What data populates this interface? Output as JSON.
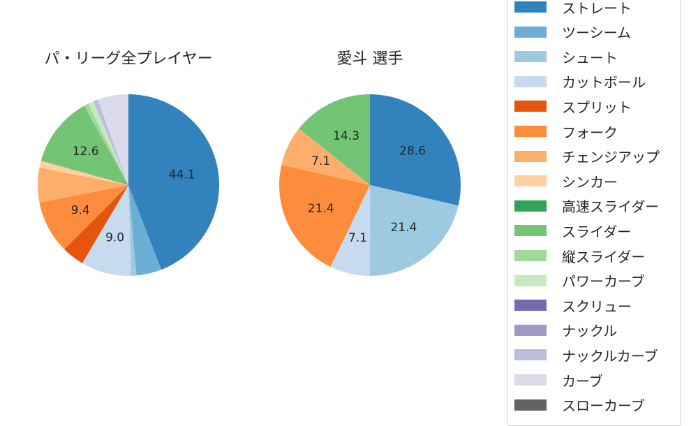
{
  "chart_data": [
    {
      "type": "pie",
      "title": "パ・リーグ全プレイヤー",
      "categories": [
        "ストレート",
        "ツーシーム",
        "シュート",
        "カットボール",
        "スプリット",
        "フォーク",
        "チェンジアップ",
        "シンカー",
        "高速スライダー",
        "スライダー",
        "縦スライダー",
        "パワーカーブ",
        "スクリュー",
        "ナックル",
        "ナックルカーブ",
        "カーブ",
        "スローカーブ"
      ],
      "values": [
        44.1,
        4.5,
        0.9,
        9.0,
        4.0,
        9.4,
        6.2,
        1.2,
        0.0,
        12.6,
        0.8,
        1.0,
        0.0,
        0.0,
        0.8,
        5.5,
        0.0
      ],
      "labels": [
        "44.1",
        "",
        "",
        "9.0",
        "",
        "9.4",
        "",
        "",
        "",
        "12.6",
        "",
        "",
        "",
        "",
        "",
        "",
        ""
      ]
    },
    {
      "type": "pie",
      "title": "愛斗  選手",
      "categories": [
        "ストレート",
        "ツーシーム",
        "シュート",
        "カットボール",
        "スプリット",
        "フォーク",
        "チェンジアップ",
        "シンカー",
        "高速スライダー",
        "スライダー",
        "縦スライダー",
        "パワーカーブ",
        "スクリュー",
        "ナックル",
        "ナックルカーブ",
        "カーブ",
        "スローカーブ"
      ],
      "values": [
        28.6,
        0,
        21.4,
        7.1,
        0,
        21.4,
        7.1,
        0,
        0,
        14.3,
        0,
        0,
        0,
        0,
        0,
        0,
        0
      ],
      "labels": [
        "28.6",
        "",
        "21.4",
        "7.1",
        "",
        "21.4",
        "7.1",
        "",
        "",
        "14.3",
        "",
        "",
        "",
        "",
        "",
        "",
        ""
      ]
    }
  ],
  "legend": {
    "entries": [
      "ストレート",
      "ツーシーム",
      "シュート",
      "カットボール",
      "スプリット",
      "フォーク",
      "チェンジアップ",
      "シンカー",
      "高速スライダー",
      "スライダー",
      "縦スライダー",
      "パワーカーブ",
      "スクリュー",
      "ナックル",
      "ナックルカーブ",
      "カーブ",
      "スローカーブ"
    ],
    "colors": [
      "#3182bd",
      "#6baed6",
      "#9ecae1",
      "#c6dbef",
      "#e6550d",
      "#fd8d3c",
      "#fdae6b",
      "#fdd0a2",
      "#31a354",
      "#74c476",
      "#a1d99b",
      "#c7e9c0",
      "#756bb1",
      "#9e9ac8",
      "#bcbddc",
      "#dadaeb",
      "#636363"
    ]
  }
}
